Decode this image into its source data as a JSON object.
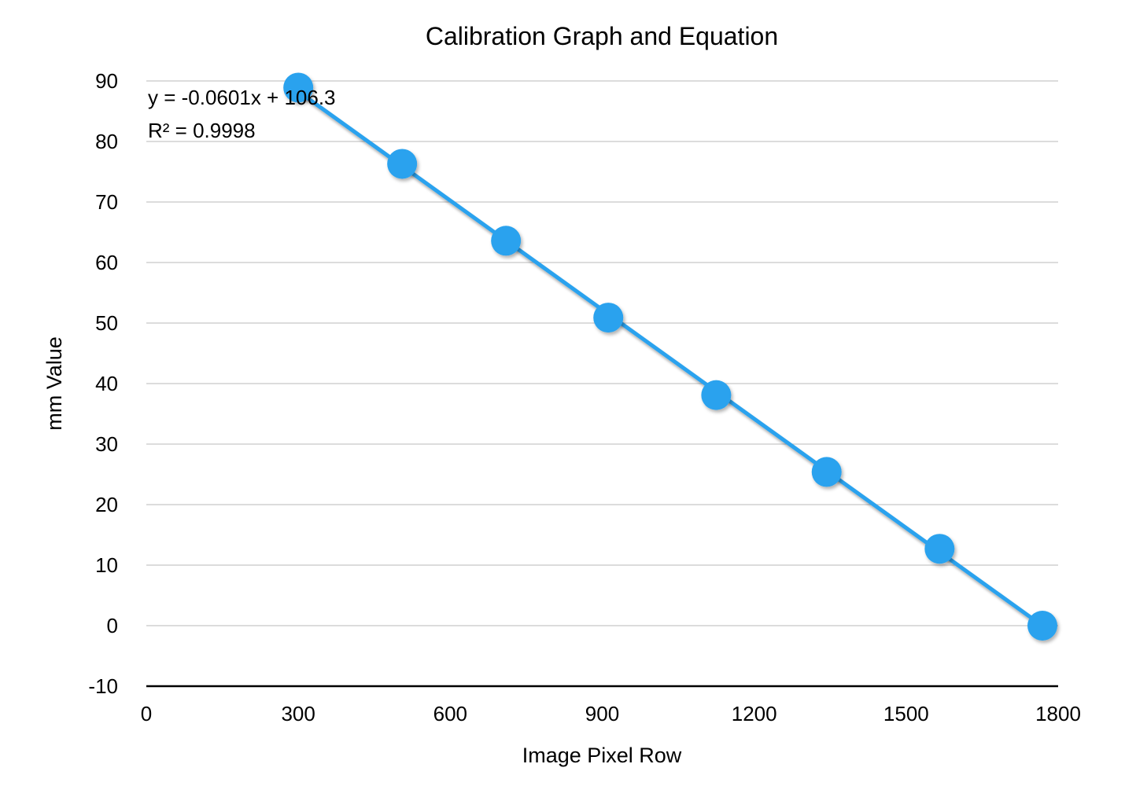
{
  "chart_data": {
    "type": "scatter",
    "title": "Calibration Graph and Equation",
    "xlabel": "Image Pixel Row",
    "ylabel": "mm Value",
    "xlim": [
      0,
      1800
    ],
    "ylim": [
      -10,
      90
    ],
    "x_ticks": [
      0,
      300,
      600,
      900,
      1200,
      1500,
      1800
    ],
    "y_ticks": [
      -10,
      0,
      10,
      20,
      30,
      40,
      50,
      60,
      70,
      80,
      90
    ],
    "grid": true,
    "legend": "none",
    "series": [
      {
        "x": [
          300,
          505,
          710,
          912,
          1125,
          1343,
          1566,
          1769
        ],
        "y": [
          88.9,
          76.3,
          63.6,
          50.9,
          38.1,
          25.4,
          12.7,
          0
        ],
        "color": "#2aa2ee",
        "marker": "circle"
      }
    ],
    "trendline": {
      "type": "linear",
      "slope": -0.0601,
      "intercept": 106.3,
      "x_range": [
        300,
        1769
      ],
      "color": "#2aa2ee"
    },
    "annotations": [
      "y = -0.0601x + 106.3",
      "R² = 0.9998"
    ]
  }
}
